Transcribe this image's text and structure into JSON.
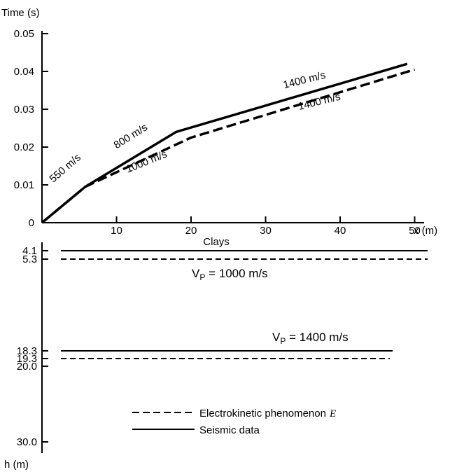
{
  "chart_data": [
    {
      "type": "line",
      "ylabel": "Time (s)",
      "xlabel": "x (m)",
      "xlim": [
        0,
        51
      ],
      "ylim": [
        0,
        0.05
      ],
      "x_ticks": [
        {
          "value": 10,
          "label": "10"
        },
        {
          "value": 20,
          "label": "20"
        },
        {
          "value": 30,
          "label": "30"
        },
        {
          "value": 40,
          "label": "40"
        },
        {
          "value": 50,
          "label": "50"
        }
      ],
      "y_ticks": [
        {
          "value": 0,
          "label": "0"
        },
        {
          "value": 0.01,
          "label": "0.01"
        },
        {
          "value": 0.02,
          "label": "0.02"
        },
        {
          "value": 0.03,
          "label": "0.03"
        },
        {
          "value": 0.04,
          "label": "0.04"
        },
        {
          "value": 0.05,
          "label": "0.05"
        }
      ],
      "series": [
        {
          "style": "solid",
          "points": [
            [
              0,
              0
            ],
            [
              5.8,
              0.0095
            ],
            [
              18,
              0.024
            ],
            [
              49,
              0.042
            ]
          ]
        },
        {
          "style": "dashed",
          "points": [
            [
              0,
              0
            ],
            [
              5.8,
              0.0095
            ],
            [
              20,
              0.0225
            ],
            [
              50,
              0.0405
            ]
          ]
        }
      ],
      "annotations": [
        {
          "text": "550 m/s",
          "x": 1.5,
          "y": 0.0105,
          "angle": -41
        },
        {
          "text": "800 m/s",
          "x": 10,
          "y": 0.0195,
          "angle": -32
        },
        {
          "text": "1000 m/s",
          "x": 11.5,
          "y": 0.0132,
          "angle": -22
        },
        {
          "text": "1400 m/s",
          "x": 32.5,
          "y": 0.0355,
          "angle": -14
        },
        {
          "text": "1400 m/s",
          "x": 34.5,
          "y": 0.0298,
          "angle": -14
        }
      ],
      "grid": false
    },
    {
      "type": "line",
      "ylabel": "h (m)",
      "ylim": [
        0,
        30
      ],
      "y_ticks": [
        {
          "value": 4.1,
          "label": "4.1"
        },
        {
          "value": 5.3,
          "label": "5.3"
        },
        {
          "value": 18.3,
          "label": "18.3"
        },
        {
          "value": 19.3,
          "label": "19.3"
        },
        {
          "value": 20.0,
          "label": "20.0"
        },
        {
          "value": 30.0,
          "label": "30.0"
        }
      ],
      "series": [
        {
          "name": "Seismic data",
          "style": "solid",
          "depths": [
            4.1,
            18.3
          ]
        },
        {
          "name": "Electrokinetic phenomenon E",
          "style": "dashed",
          "depths": [
            5.3,
            19.3
          ]
        }
      ],
      "layers": [
        {
          "name": "Clays",
          "sub": "",
          "velocity": ""
        },
        {
          "name": "V",
          "sub": "P",
          "velocity": " = 1000 m/s"
        },
        {
          "name": "V",
          "sub": "P",
          "velocity": " = 1400 m/s"
        }
      ],
      "legend": {
        "position": "bottom-center",
        "entries": [
          {
            "label": "Electrokinetic phenomenon",
            "symbol": "E",
            "style": "dashed"
          },
          {
            "label": "Seismic  data",
            "symbol": "",
            "style": "solid"
          }
        ]
      }
    }
  ]
}
